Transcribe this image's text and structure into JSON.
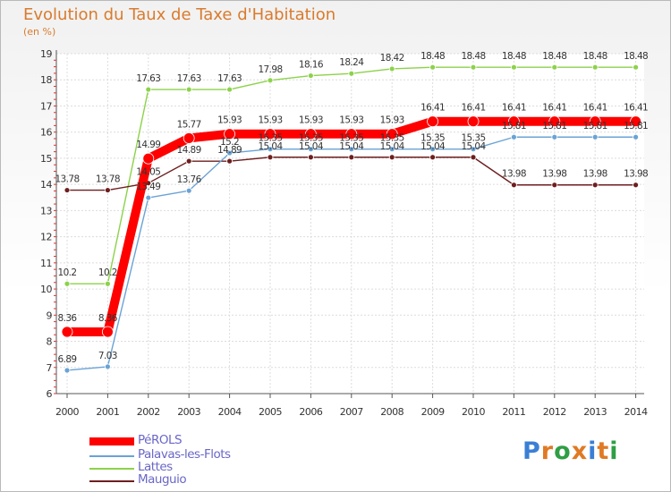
{
  "header": {
    "title": "Evolution du Taux de Taxe d'Habitation",
    "subtitle": "(en %)"
  },
  "brand": {
    "letters": [
      "P",
      "r",
      "o",
      "x",
      "i",
      "t",
      "i"
    ],
    "colors": [
      "#3a7fd5",
      "#e07a24",
      "#2f9e44",
      "#e07a24",
      "#3a7fd5",
      "#e07a24",
      "#2f9e44"
    ]
  },
  "chart_data": {
    "type": "line",
    "title": "Evolution du Taux de Taxe d'Habitation",
    "ylabel": "(en %)",
    "xlabel": "",
    "x": [
      "2000",
      "2001",
      "2002",
      "2003",
      "2004",
      "2005",
      "2006",
      "2007",
      "2008",
      "2009",
      "2010",
      "2011",
      "2012",
      "2013",
      "2014"
    ],
    "ylim": [
      6,
      19
    ],
    "yticks": [
      "6",
      "7",
      "8",
      "9",
      "10",
      "11",
      "12",
      "13",
      "14",
      "15",
      "16",
      "17",
      "18",
      "19"
    ],
    "grid": true,
    "legend_position": "bottom-left",
    "series": [
      {
        "name": "PéROLS",
        "color": "#ff0000",
        "values": [
          8.36,
          8.36,
          14.99,
          15.77,
          15.93,
          15.93,
          15.93,
          15.93,
          15.93,
          16.41,
          16.41,
          16.41,
          16.41,
          16.41,
          16.41
        ],
        "labels": [
          "8.36",
          "8.36",
          "14.99",
          "15.77",
          "15.93",
          "15.93",
          "15.93",
          "15.93",
          "15.93",
          "16.41",
          "16.41",
          "16.41",
          "16.41",
          "16.41",
          "16.41"
        ]
      },
      {
        "name": "Palavas-les-Flots",
        "color": "#6aa3d5",
        "values": [
          6.89,
          7.03,
          13.49,
          13.76,
          15.2,
          15.35,
          15.35,
          15.35,
          15.35,
          15.35,
          15.35,
          15.81,
          15.81,
          15.81,
          15.81
        ],
        "labels": [
          "6.89",
          "7.03",
          "13.49",
          "13.76",
          "15.2",
          "15.35",
          "15.35",
          "15.35",
          "15.35",
          "15.35",
          "15.35",
          "15.81",
          "15.81",
          "15.81",
          "15.81"
        ]
      },
      {
        "name": "Lattes",
        "color": "#8cd24a",
        "values": [
          10.2,
          10.2,
          17.63,
          17.63,
          17.63,
          17.98,
          18.16,
          18.24,
          18.42,
          18.48,
          18.48,
          18.48,
          18.48,
          18.48,
          18.48
        ],
        "labels": [
          "10.2",
          "10.2",
          "17.63",
          "17.63",
          "17.63",
          "17.98",
          "18.16",
          "18.24",
          "18.42",
          "18.48",
          "18.48",
          "18.48",
          "18.48",
          "18.48",
          "18.48"
        ]
      },
      {
        "name": "Mauguio",
        "color": "#6e1e1e",
        "values": [
          13.78,
          13.78,
          14.05,
          14.89,
          14.89,
          15.04,
          15.04,
          15.04,
          15.04,
          15.04,
          15.04,
          13.98,
          13.98,
          13.98,
          13.98
        ],
        "labels": [
          "13.78",
          "13.78",
          "14.05",
          "14.89",
          "14.89",
          "15.04",
          "15.04",
          "15.04",
          "15.04",
          "15.04",
          "15.04",
          "13.98",
          "13.98",
          "13.98",
          "13.98"
        ]
      }
    ]
  }
}
